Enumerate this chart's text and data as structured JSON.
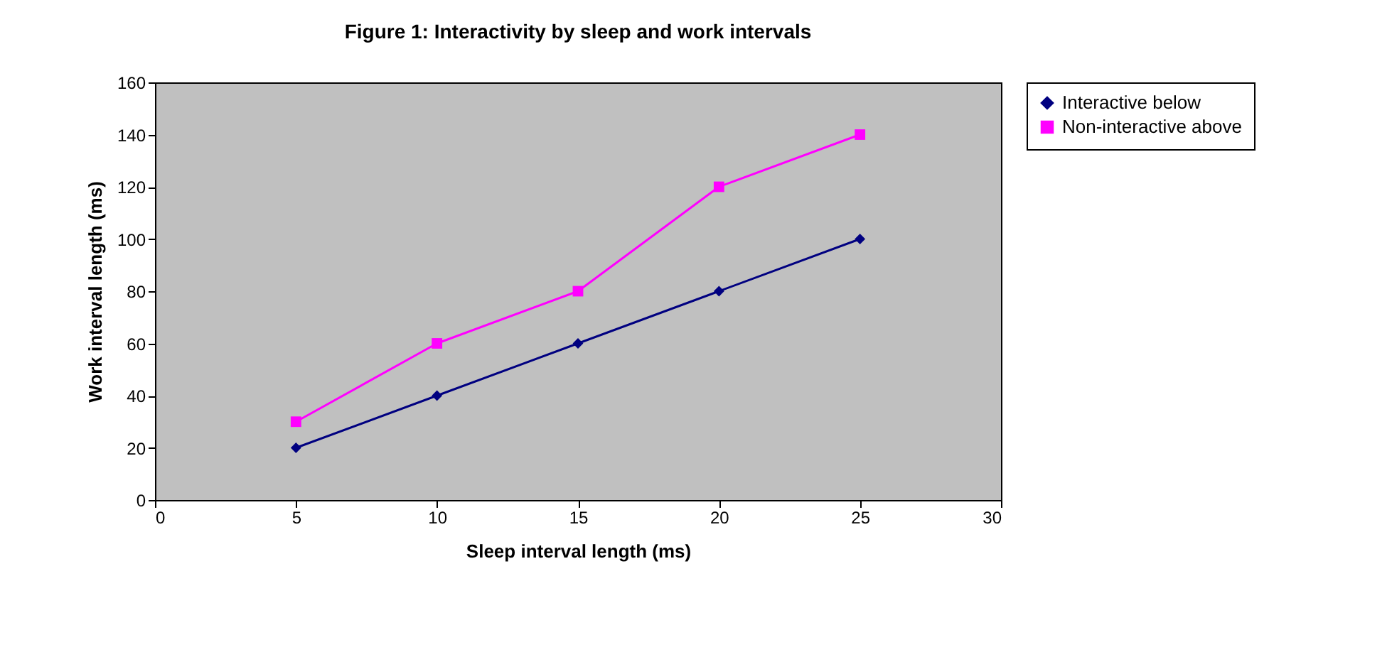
{
  "chart_data": {
    "type": "line",
    "title": "Figure 1: Interactivity by sleep and work intervals",
    "xlabel": "Sleep interval length (ms)",
    "ylabel": "Work interval length (ms)",
    "x": [
      5,
      10,
      15,
      20,
      25
    ],
    "series": [
      {
        "name": "Interactive below",
        "color": "#000080",
        "marker": "diamond",
        "values": [
          20,
          40,
          60,
          80,
          100
        ]
      },
      {
        "name": "Non-interactive above",
        "color": "#ff00ff",
        "marker": "square",
        "values": [
          30,
          60,
          80,
          120,
          140
        ]
      }
    ],
    "xlim": [
      0,
      30
    ],
    "xticks": [
      0,
      5,
      10,
      15,
      20,
      25,
      30
    ],
    "ylim": [
      0,
      160
    ],
    "yticks": [
      0,
      20,
      40,
      60,
      80,
      100,
      120,
      140,
      160
    ],
    "grid": false,
    "legend": "right"
  }
}
